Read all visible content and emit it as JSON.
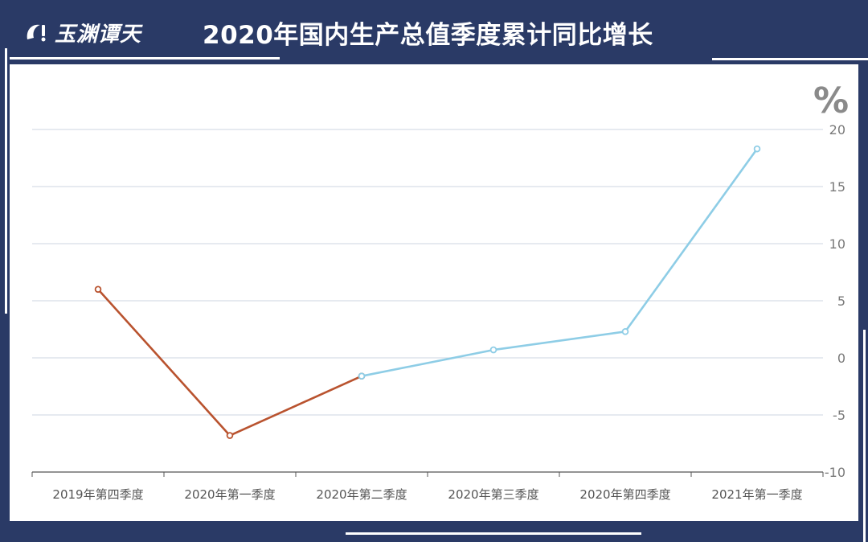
{
  "header": {
    "logo_text": "玉渊谭天",
    "title": "2020年国内生产总值季度累计同比增长"
  },
  "colors": {
    "background": "#2a3a66",
    "actual_series": "#b9532f",
    "projected_series": "#8ecde6",
    "grid": "#d8dee6",
    "tick_text": "#7a7a7a"
  },
  "chart_data": {
    "type": "line",
    "title": "2020年国内生产总值季度累计同比增长",
    "ylabel": "%",
    "ylim": [
      -10,
      20
    ],
    "yticks": [
      -10,
      -5,
      0,
      5,
      10,
      15,
      20
    ],
    "y_axis_position": "right",
    "grid": true,
    "categories": [
      "2019年第四季度",
      "2020年第一季度",
      "2020年第二季度",
      "2020年第三季度",
      "2020年第四季度",
      "2021年第一季度"
    ],
    "series": [
      {
        "values": [
          6.0,
          -6.8,
          -1.6,
          null,
          null,
          null
        ],
        "color": "#b9532f"
      },
      {
        "values": [
          null,
          null,
          -1.6,
          0.7,
          2.3,
          18.3
        ],
        "color": "#8ecde6"
      }
    ]
  }
}
